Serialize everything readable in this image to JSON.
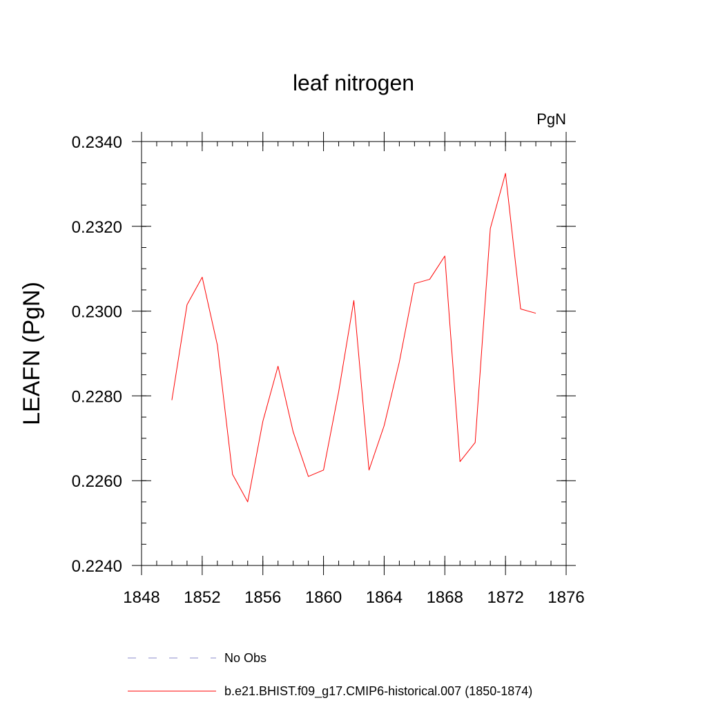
{
  "chart_data": {
    "type": "line",
    "title": "leaf nitrogen",
    "units": "PgN",
    "ylabel": "LEAFN  (PgN)",
    "xlabel": "",
    "xlim": [
      1848,
      1876
    ],
    "ylim": [
      0.224,
      0.234
    ],
    "x_ticks": [
      1848,
      1852,
      1856,
      1860,
      1864,
      1868,
      1872,
      1876
    ],
    "x_tick_labels": [
      "1848",
      "1852",
      "1856",
      "1860",
      "1864",
      "1868",
      "1872",
      "1876"
    ],
    "y_ticks": [
      0.224,
      0.226,
      0.228,
      0.23,
      0.232,
      0.234
    ],
    "y_tick_labels": [
      "0.2240",
      "0.2260",
      "0.2280",
      "0.2300",
      "0.2320",
      "0.2340"
    ],
    "x_minor_step": 1,
    "y_minor_step": 0.0005,
    "series": [
      {
        "name": "b.e21.BHIST.f09_g17.CMIP6-historical.007 (1850-1874)",
        "color": "#ff0000",
        "x": [
          1850,
          1851,
          1852,
          1853,
          1854,
          1855,
          1856,
          1857,
          1858,
          1859,
          1860,
          1861,
          1862,
          1863,
          1864,
          1865,
          1866,
          1867,
          1868,
          1869,
          1870,
          1871,
          1872,
          1873,
          1874
        ],
        "values": [
          0.2279,
          0.23015,
          0.2308,
          0.2292,
          0.22615,
          0.2255,
          0.2274,
          0.2287,
          0.22715,
          0.2261,
          0.22625,
          0.2281,
          0.23025,
          0.22625,
          0.2273,
          0.2288,
          0.23065,
          0.23075,
          0.2313,
          0.22645,
          0.2269,
          0.23195,
          0.23325,
          0.23005,
          0.22995
        ]
      }
    ],
    "legend": [
      {
        "label": "No Obs",
        "style": "dashed",
        "color": "#8888cc"
      },
      {
        "label": "b.e21.BHIST.f09_g17.CMIP6-historical.007 (1850-1874)",
        "style": "solid",
        "color": "#ff0000"
      }
    ]
  }
}
